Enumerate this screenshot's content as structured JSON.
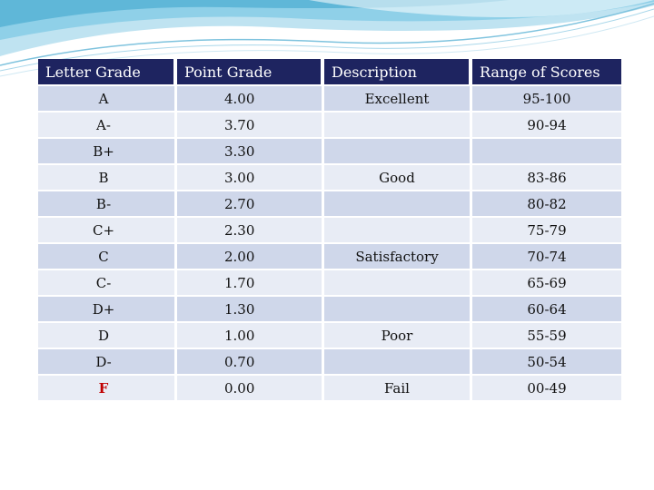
{
  "table": {
    "headers": {
      "letter": "Letter Grade",
      "point": "Point Grade",
      "description": "Description",
      "range": "Range of Scores"
    },
    "rows": [
      {
        "letter": "A",
        "point": "4.00",
        "description": "Excellent",
        "range": "95-100"
      },
      {
        "letter": "A-",
        "point": "3.70",
        "description": "",
        "range": "90-94"
      },
      {
        "letter": "B+",
        "point": "3.30",
        "description": "",
        "range": ""
      },
      {
        "letter": "B",
        "point": "3.00",
        "description": "Good",
        "range": "83-86"
      },
      {
        "letter": "B-",
        "point": "2.70",
        "description": "",
        "range": "80-82"
      },
      {
        "letter": "C+",
        "point": "2.30",
        "description": "",
        "range": "75-79"
      },
      {
        "letter": "C",
        "point": "2.00",
        "description": "Satisfactory",
        "range": "70-74"
      },
      {
        "letter": "C-",
        "point": "1.70",
        "description": "",
        "range": "65-69"
      },
      {
        "letter": "D+",
        "point": "1.30",
        "description": "",
        "range": "60-64"
      },
      {
        "letter": "D",
        "point": "1.00",
        "description": "Poor",
        "range": "55-59"
      },
      {
        "letter": "D-",
        "point": "0.70",
        "description": "",
        "range": "50-54"
      },
      {
        "letter": "F",
        "point": "0.00",
        "description": "Fail",
        "range": "00-49"
      }
    ]
  },
  "colors": {
    "header_bg": "#1e2460",
    "row_dark": "#cfd7ea",
    "row_light": "#e8ecf5",
    "fail_letter": "#c00000",
    "accent_wave": "#5fb7d8"
  }
}
